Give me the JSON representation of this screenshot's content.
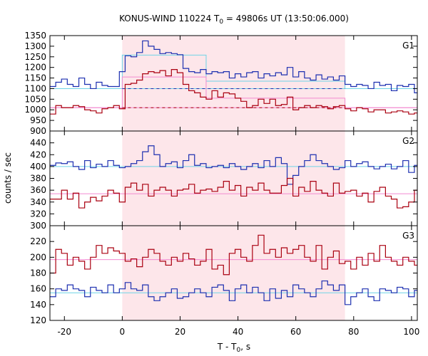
{
  "chart_data": {
    "type": "line",
    "title_main": "KONUS-WIND 110224 T",
    "title_sub": "0",
    "title_rest": " = 49806s UT (13:50:06.000)",
    "xlabel_main": "T - T",
    "xlabel_sub": "0",
    "xlabel_rest": ", s",
    "ylabel": "counts / sec",
    "xlim": [
      -25,
      102
    ],
    "xticks": [
      -20,
      0,
      20,
      40,
      60,
      80,
      100
    ],
    "shaded_interval": [
      0,
      77
    ],
    "colors": {
      "high_series": "#1c2fb0",
      "low_series": "#aa0010",
      "high_background": "#6fd3e6",
      "low_background": "#f28ad0",
      "shade": "#fde6ea"
    },
    "panels": [
      {
        "label": "G1",
        "ylim": [
          900,
          1350
        ],
        "yticks": [
          900,
          950,
          1000,
          1050,
          1100,
          1150,
          1200,
          1250,
          1300,
          1350
        ],
        "step_x": [
          -25,
          -23,
          -21,
          -19,
          -17,
          -15,
          -13,
          -11,
          -9,
          -7,
          -5,
          -3,
          -1,
          1,
          3,
          5,
          7,
          9,
          11,
          13,
          15,
          17,
          19,
          21,
          23,
          25,
          27,
          29,
          31,
          33,
          35,
          37,
          39,
          41,
          43,
          45,
          47,
          49,
          51,
          53,
          55,
          57,
          59,
          61,
          63,
          65,
          67,
          69,
          71,
          73,
          75,
          77,
          79,
          81,
          83,
          85,
          87,
          89,
          91,
          93,
          95,
          97,
          99,
          101
        ],
        "series": [
          {
            "values": [
              1110,
              1130,
              1145,
              1120,
              1110,
              1150,
              1120,
              1100,
              1130,
              1115,
              1110,
              1110,
              1180,
              1255,
              1250,
              1270,
              1325,
              1300,
              1285,
              1265,
              1270,
              1265,
              1260,
              1195,
              1180,
              1175,
              1190,
              1170,
              1180,
              1175,
              1180,
              1150,
              1170,
              1155,
              1175,
              1180,
              1150,
              1170,
              1160,
              1175,
              1165,
              1200,
              1155,
              1180,
              1150,
              1140,
              1165,
              1145,
              1155,
              1140,
              1160,
              1120,
              1110,
              1120,
              1115,
              1100,
              1130,
              1115,
              1120,
              1090,
              1115,
              1110,
              1120,
              1080
            ]
          },
          {
            "values": [
              980,
              1020,
              1010,
              1010,
              1020,
              1015,
              1000,
              995,
              985,
              1005,
              1010,
              1020,
              1005,
              1120,
              1125,
              1140,
              1170,
              1180,
              1175,
              1185,
              1160,
              1190,
              1175,
              1120,
              1090,
              1080,
              1060,
              1050,
              1090,
              1060,
              1080,
              1075,
              1055,
              1040,
              1010,
              1020,
              1050,
              1030,
              1050,
              1020,
              1025,
              1060,
              1000,
              1010,
              1020,
              1010,
              1020,
              1015,
              1005,
              1015,
              1020,
              1005,
              995,
              1010,
              1005,
              990,
              1000,
              1000,
              985,
              990,
              995,
              990,
              980,
              985
            ]
          }
        ],
        "background_levels": [
          1100,
          1010
        ],
        "bayesian_blocks": [
          {
            "x": [
              -25,
              0,
              0,
              29,
              29,
              77,
              77,
              102
            ],
            "y": [
              1100,
              1100,
              1258,
              1258,
              1135,
              1135,
              1100,
              1100
            ]
          },
          {
            "x": [
              -25,
              0,
              0,
              29,
              29,
              77,
              77,
              102
            ],
            "y": [
              1010,
              1010,
              1155,
              1155,
              1055,
              1055,
              1010,
              1010
            ]
          }
        ],
        "dashed_levels": [
          1100,
          1010
        ]
      },
      {
        "label": "G2",
        "ylim": [
          300,
          460
        ],
        "yticks": [
          300,
          320,
          340,
          360,
          380,
          400,
          420,
          440
        ],
        "step_x": [
          -25,
          -23,
          -21,
          -19,
          -17,
          -15,
          -13,
          -11,
          -9,
          -7,
          -5,
          -3,
          -1,
          1,
          3,
          5,
          7,
          9,
          11,
          13,
          15,
          17,
          19,
          21,
          23,
          25,
          27,
          29,
          31,
          33,
          35,
          37,
          39,
          41,
          43,
          45,
          47,
          49,
          51,
          53,
          55,
          57,
          59,
          61,
          63,
          65,
          67,
          69,
          71,
          73,
          75,
          77,
          79,
          81,
          83,
          85,
          87,
          89,
          91,
          93,
          95,
          97,
          99,
          101
        ],
        "series": [
          {
            "values": [
              402,
              406,
              405,
              408,
              400,
              395,
              410,
              398,
              404,
              400,
              410,
              402,
              398,
              400,
              405,
              410,
              425,
              435,
              420,
              400,
              405,
              408,
              398,
              410,
              420,
              402,
              405,
              398,
              400,
              402,
              398,
              405,
              400,
              395,
              400,
              405,
              398,
              410,
              400,
              415,
              405,
              370,
              385,
              400,
              410,
              420,
              410,
              405,
              400,
              395,
              398,
              410,
              400,
              405,
              408,
              400,
              396,
              400,
              404,
              396,
              400,
              410,
              390,
              402
            ]
          },
          {
            "values": [
              345,
              345,
              360,
              345,
              355,
              330,
              340,
              348,
              342,
              350,
              360,
              355,
              340,
              365,
              372,
              360,
              370,
              350,
              360,
              365,
              360,
              350,
              360,
              362,
              370,
              355,
              360,
              362,
              358,
              365,
              375,
              360,
              368,
              350,
              365,
              360,
              372,
              360,
              355,
              355,
              368,
              380,
              350,
              365,
              358,
              375,
              360,
              355,
              350,
              372,
              355,
              358,
              360,
              350,
              355,
              340,
              358,
              365,
              350,
              345,
              330,
              332,
              340,
              360
            ]
          }
        ],
        "background_levels": [
          400,
          354
        ],
        "bayesian_blocks": [],
        "dashed_levels": []
      },
      {
        "label": "G3",
        "ylim": [
          120,
          240
        ],
        "yticks": [
          120,
          140,
          160,
          180,
          200,
          220
        ],
        "step_x": [
          -25,
          -23,
          -21,
          -19,
          -17,
          -15,
          -13,
          -11,
          -9,
          -7,
          -5,
          -3,
          -1,
          1,
          3,
          5,
          7,
          9,
          11,
          13,
          15,
          17,
          19,
          21,
          23,
          25,
          27,
          29,
          31,
          33,
          35,
          37,
          39,
          41,
          43,
          45,
          47,
          49,
          51,
          53,
          55,
          57,
          59,
          61,
          63,
          65,
          67,
          69,
          71,
          73,
          75,
          77,
          79,
          81,
          83,
          85,
          87,
          89,
          91,
          93,
          95,
          97,
          99,
          101
        ],
        "series": [
          {
            "values": [
              150,
              160,
              158,
              165,
              160,
              158,
              150,
              162,
              158,
              155,
              165,
              155,
              160,
              168,
              160,
              158,
              165,
              150,
              145,
              150,
              155,
              160,
              148,
              150,
              155,
              160,
              155,
              150,
              162,
              165,
              158,
              145,
              160,
              165,
              155,
              162,
              155,
              145,
              160,
              148,
              158,
              150,
              165,
              160,
              155,
              150,
              160,
              170,
              165,
              158,
              165,
              140,
              150,
              155,
              160,
              150,
              145,
              160,
              158,
              155,
              162,
              160,
              150,
              158
            ]
          },
          {
            "values": [
              180,
              210,
              205,
              190,
              200,
              195,
              185,
              200,
              215,
              205,
              212,
              208,
              205,
              195,
              198,
              188,
              200,
              210,
              205,
              195,
              190,
              200,
              195,
              205,
              198,
              190,
              195,
              210,
              185,
              190,
              178,
              205,
              210,
              200,
              195,
              215,
              228,
              205,
              210,
              200,
              212,
              205,
              210,
              215,
              200,
              195,
              215,
              185,
              200,
              208,
              192,
              195,
              185,
              200,
              190,
              205,
              195,
              215,
              200,
              195,
              190,
              200,
              195,
              190
            ]
          }
        ],
        "background_levels": [
          155,
          197
        ],
        "bayesian_blocks": [],
        "dashed_levels": []
      }
    ]
  }
}
